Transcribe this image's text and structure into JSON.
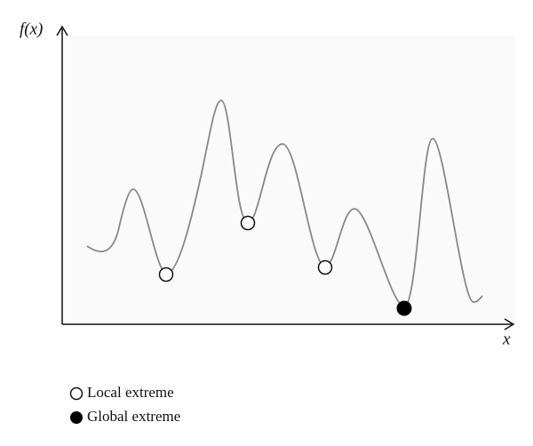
{
  "axes": {
    "y_label": "f(x)",
    "x_label": "x"
  },
  "legend": [
    {
      "label": "Local extreme"
    },
    {
      "label": "Global extreme"
    }
  ]
}
